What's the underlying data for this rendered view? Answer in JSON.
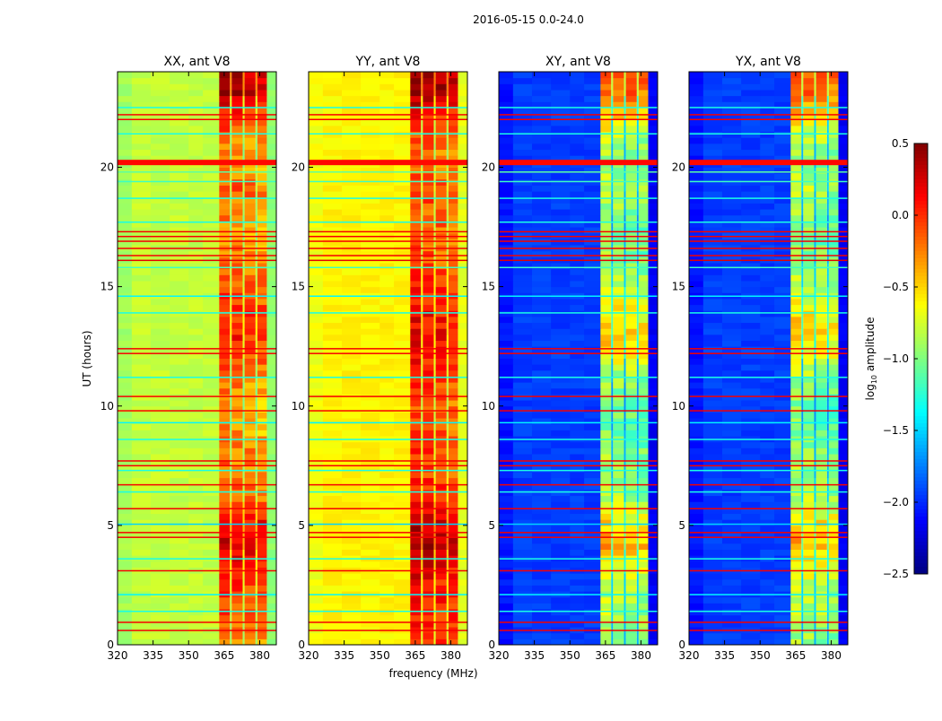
{
  "chart_data": {
    "type": "heatmap",
    "title": "2016-05-15 0.0-24.0",
    "xlabel": "frequency (MHz)",
    "ylabel": "UT (hours)",
    "xlim": [
      320,
      387
    ],
    "ylim": [
      0,
      24
    ],
    "xticks": [
      "320",
      "335",
      "350",
      "365",
      "380"
    ],
    "xtick_values": [
      320,
      335,
      350,
      365,
      380
    ],
    "yticks": [
      "0",
      "5",
      "10",
      "15",
      "20"
    ],
    "ytick_values": [
      0,
      5,
      10,
      15,
      20
    ],
    "colormap": "jet",
    "colorbar": {
      "label_main": "log",
      "label_sub": "10",
      "label_rest": " amplitude",
      "range": [
        -2.5,
        0.5
      ],
      "ticks": [
        "0.5",
        "0.0",
        "−0.5",
        "−1.0",
        "−1.5",
        "−2.0",
        "−2.5"
      ],
      "tick_values": [
        0.5,
        0.0,
        -0.5,
        -1.0,
        -1.5,
        -2.0,
        -2.5
      ]
    },
    "sub_bands_mhz": [
      [
        362.9,
        367.4
      ],
      [
        368.2,
        372.8
      ],
      [
        373.6,
        378.2
      ],
      [
        379.0,
        383.0
      ]
    ],
    "panels": [
      {
        "title": "XX, ant V8",
        "background_level": -0.8,
        "edge_level": -0.95,
        "band_profile_hourly": [
          -0.2,
          -0.1,
          0.0,
          0.1,
          0.3,
          0.2,
          -0.1,
          -0.2,
          -0.2,
          -0.3,
          -0.3,
          -0.2,
          0.0,
          0.1,
          0.0,
          -0.1,
          -0.2,
          -0.3,
          -0.2,
          -0.1,
          -0.3,
          -0.2,
          0.0,
          0.4
        ]
      },
      {
        "title": "YY, ant V8",
        "background_level": -0.6,
        "edge_level": -0.7,
        "band_profile_hourly": [
          0.0,
          0.1,
          0.1,
          0.2,
          0.45,
          0.3,
          0.1,
          0.0,
          0.0,
          -0.1,
          -0.1,
          0.0,
          0.1,
          0.2,
          0.1,
          0.1,
          -0.1,
          -0.1,
          -0.1,
          0.0,
          -0.2,
          -0.1,
          0.1,
          0.45
        ]
      },
      {
        "title": "XY, ant V8",
        "background_level": -1.95,
        "edge_level": -2.15,
        "band_profile_hourly": [
          -0.9,
          -0.8,
          -0.8,
          -0.6,
          -0.35,
          -0.5,
          -0.8,
          -0.9,
          -0.9,
          -1.0,
          -1.0,
          -0.9,
          -0.6,
          -0.45,
          -0.6,
          -0.8,
          -0.9,
          -1.0,
          -0.9,
          -0.8,
          -0.9,
          -0.8,
          -0.5,
          -0.1
        ]
      },
      {
        "title": "YX, ant V8",
        "background_level": -1.95,
        "edge_level": -2.15,
        "band_profile_hourly": [
          -0.9,
          -0.8,
          -0.8,
          -0.6,
          -0.35,
          -0.5,
          -0.8,
          -0.9,
          -0.9,
          -1.0,
          -1.0,
          -0.9,
          -0.6,
          -0.45,
          -0.6,
          -0.8,
          -0.9,
          -1.0,
          -0.9,
          -0.8,
          -0.9,
          -0.8,
          -0.5,
          -0.1
        ]
      }
    ],
    "rfi_lines": [
      {
        "ut": 0.6,
        "level": 0.15
      },
      {
        "ut": 0.94,
        "level": 0.15
      },
      {
        "ut": 1.4,
        "level": -1.3
      },
      {
        "ut": 2.1,
        "level": -1.4
      },
      {
        "ut": 3.1,
        "level": 0.15
      },
      {
        "ut": 3.6,
        "level": -1.3
      },
      {
        "ut": 4.5,
        "level": 0.15
      },
      {
        "ut": 4.7,
        "level": 0.15
      },
      {
        "ut": 5.05,
        "level": -1.5
      },
      {
        "ut": 5.7,
        "level": 0.15
      },
      {
        "ut": 6.4,
        "level": -1.3
      },
      {
        "ut": 6.7,
        "level": 0.15
      },
      {
        "ut": 7.3,
        "level": -1.3
      },
      {
        "ut": 7.5,
        "level": 0.15
      },
      {
        "ut": 7.7,
        "level": 0.15
      },
      {
        "ut": 8.6,
        "level": -1.3
      },
      {
        "ut": 9.3,
        "level": -1.4
      },
      {
        "ut": 9.8,
        "level": 0.15
      },
      {
        "ut": 10.4,
        "level": 0.15
      },
      {
        "ut": 11.2,
        "level": -1.3
      },
      {
        "ut": 12.2,
        "level": 0.15
      },
      {
        "ut": 12.4,
        "level": 0.15
      },
      {
        "ut": 13.9,
        "level": -1.3
      },
      {
        "ut": 14.6,
        "level": -1.4
      },
      {
        "ut": 15.8,
        "level": -1.2
      },
      {
        "ut": 16.1,
        "level": 0.2
      },
      {
        "ut": 16.3,
        "level": 0.15
      },
      {
        "ut": 16.6,
        "level": 0.15
      },
      {
        "ut": 16.9,
        "level": 0.15
      },
      {
        "ut": 17.1,
        "level": 0.15
      },
      {
        "ut": 17.3,
        "level": 0.15
      },
      {
        "ut": 17.7,
        "level": -1.3
      },
      {
        "ut": 18.7,
        "level": -1.3
      },
      {
        "ut": 19.4,
        "level": -1.2
      },
      {
        "ut": 19.8,
        "level": -1.1
      },
      {
        "ut": 20.2,
        "level": 0.1,
        "thick": true
      },
      {
        "ut": 21.4,
        "level": -1.3
      },
      {
        "ut": 22.0,
        "level": 0.15
      },
      {
        "ut": 22.2,
        "level": 0.15
      },
      {
        "ut": 22.5,
        "level": -1.3
      }
    ]
  }
}
